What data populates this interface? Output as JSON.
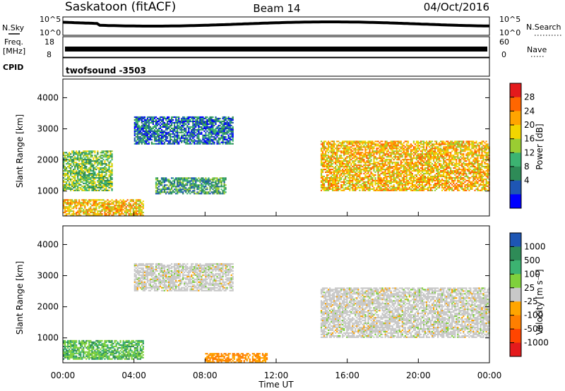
{
  "header": {
    "station": "Saskatoon (fitACF)",
    "beam": "Beam 14",
    "date": "04/Oct/2016"
  },
  "strips": {
    "nsky_label": "N.Sky",
    "nsky_ticks": [
      "10^5",
      "10^0"
    ],
    "nsearch_label": "N.Search",
    "nsearch_ticks": [
      "10^5",
      "10^0"
    ],
    "freq_label_1": "Freq.",
    "freq_label_2": "[MHz]",
    "freq_ticks": [
      "18",
      "8"
    ],
    "nave_label": "Nave",
    "nave_ticks": [
      "60",
      "0"
    ],
    "cpid_label": "CPID",
    "cpid_value": "twofsound -3503"
  },
  "axes": {
    "ylabel": "Slant Range [km]",
    "yticks": [
      "4000",
      "3000",
      "2000",
      "1000"
    ],
    "xticks": [
      "00:00",
      "04:00",
      "08:00",
      "12:00",
      "16:00",
      "20:00",
      "00:00"
    ],
    "xlabel": "Time UT"
  },
  "colorbars": {
    "power": {
      "label": "Power [dB]",
      "ticks": [
        "28",
        "24",
        "20",
        "16",
        "12",
        "8",
        "4"
      ],
      "colors": [
        "#e41a1c",
        "#ff6600",
        "#ffa500",
        "#f2d500",
        "#9acd32",
        "#3cb371",
        "#2e8b57",
        "#1e56b4",
        "#0000ff"
      ]
    },
    "velocity": {
      "label": "Velocity [m s⁻¹]",
      "ticks": [
        "1000",
        "500",
        "100",
        "25",
        "-25",
        "-100",
        "-500",
        "-1000"
      ],
      "colors": [
        "#1e56b4",
        "#2e8b57",
        "#3cb371",
        "#7fd03c",
        "#c8c8c8",
        "#ffa500",
        "#ff7f00",
        "#ff4500",
        "#e41a1c"
      ]
    }
  },
  "chart_data": [
    {
      "type": "heatmap",
      "title": "Power",
      "ylabel": "Slant Range [km]",
      "xlabel": "",
      "ylim": [
        200,
        4600
      ],
      "x_range_hours": [
        0,
        24
      ],
      "zlabel": "Power [dB]",
      "zticks": [
        4,
        8,
        12,
        16,
        20,
        24,
        28
      ],
      "bands": [
        {
          "range_km": [
            1000,
            2300
          ],
          "hours": [
            0,
            2.8
          ],
          "typical_db": 12
        },
        {
          "range_km": [
            200,
            700
          ],
          "hours": [
            0,
            4.5
          ],
          "typical_db": 20
        },
        {
          "range_km": [
            2500,
            3400
          ],
          "hours": [
            4,
            9.6
          ],
          "typical_db": 8
        },
        {
          "range_km": [
            900,
            1400
          ],
          "hours": [
            5.2,
            9.2
          ],
          "typical_db": 10
        },
        {
          "range_km": [
            1000,
            2600
          ],
          "hours": [
            14.5,
            24
          ],
          "typical_db": 18
        }
      ]
    },
    {
      "type": "heatmap",
      "title": "Velocity",
      "ylabel": "Slant Range [km]",
      "xlabel": "Time UT",
      "ylim": [
        200,
        4600
      ],
      "x_range_hours": [
        0,
        24
      ],
      "zlabel": "Velocity [m s-1]",
      "zticks": [
        -1000,
        -500,
        -100,
        -25,
        25,
        100,
        500,
        1000
      ],
      "bands": [
        {
          "range_km": [
            300,
            900
          ],
          "hours": [
            0,
            4.5
          ],
          "typical_ms": 100
        },
        {
          "range_km": [
            2500,
            3400
          ],
          "hours": [
            4,
            9.6
          ],
          "typical_ms": 0
        },
        {
          "range_km": [
            200,
            500
          ],
          "hours": [
            8,
            11.5
          ],
          "typical_ms": -100
        },
        {
          "range_km": [
            1000,
            2600
          ],
          "hours": [
            14.5,
            24
          ],
          "typical_ms": 0
        }
      ]
    }
  ]
}
